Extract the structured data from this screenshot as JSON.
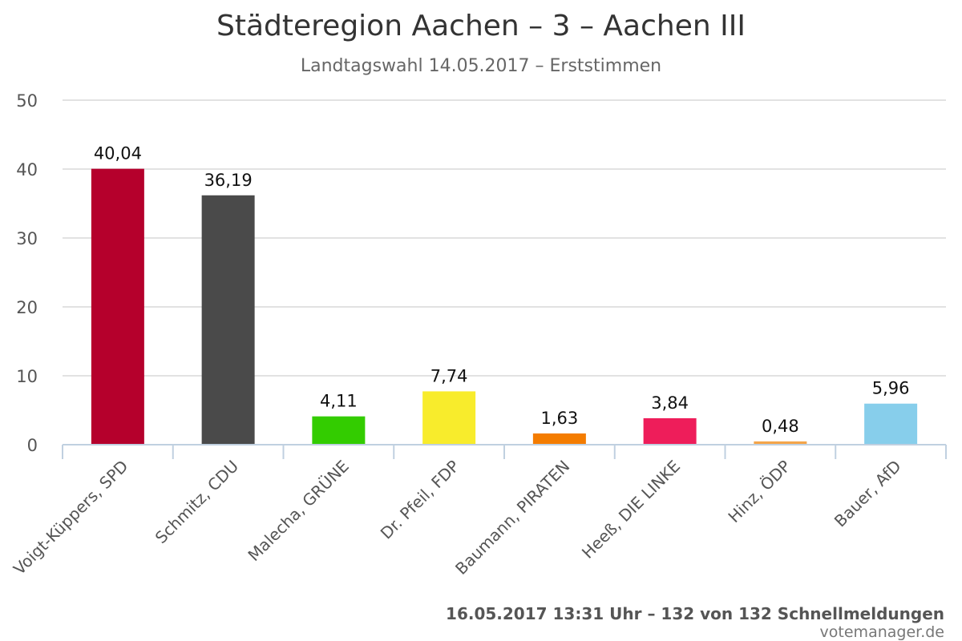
{
  "chart_data": {
    "type": "bar",
    "title": "Städteregion Aachen – 3 – Aachen III",
    "subtitle": "Landtagswahl 14.05.2017 – Erststimmen",
    "categories": [
      "Voigt-Küppers, SPD",
      "Schmitz, CDU",
      "Malecha, GRÜNE",
      "Dr. Pfeil, FDP",
      "Baumann, PIRATEN",
      "Heeß, DIE LINKE",
      "Hinz, ÖDP",
      "Bauer, AfD"
    ],
    "values": [
      40.04,
      36.19,
      4.11,
      7.74,
      1.63,
      3.84,
      0.48,
      5.96
    ],
    "data_labels": [
      "40,04",
      "36,19",
      "4,11",
      "7,74",
      "1,63",
      "3,84",
      "0,48",
      "5,96"
    ],
    "colors": [
      "#b5002c",
      "#4a4a4a",
      "#33cc00",
      "#f8ec2c",
      "#f47c00",
      "#ee1d5a",
      "#f4a54a",
      "#87ceeb"
    ],
    "ylim": [
      0,
      50
    ],
    "yticks": [
      "0",
      "10",
      "20",
      "30",
      "40",
      "50"
    ],
    "grid": true,
    "xlabel": "",
    "ylabel": ""
  },
  "footer": {
    "status": "16.05.2017 13:31 Uhr – 132 von 132 Schnellmeldungen",
    "source": "votemanager.de"
  }
}
